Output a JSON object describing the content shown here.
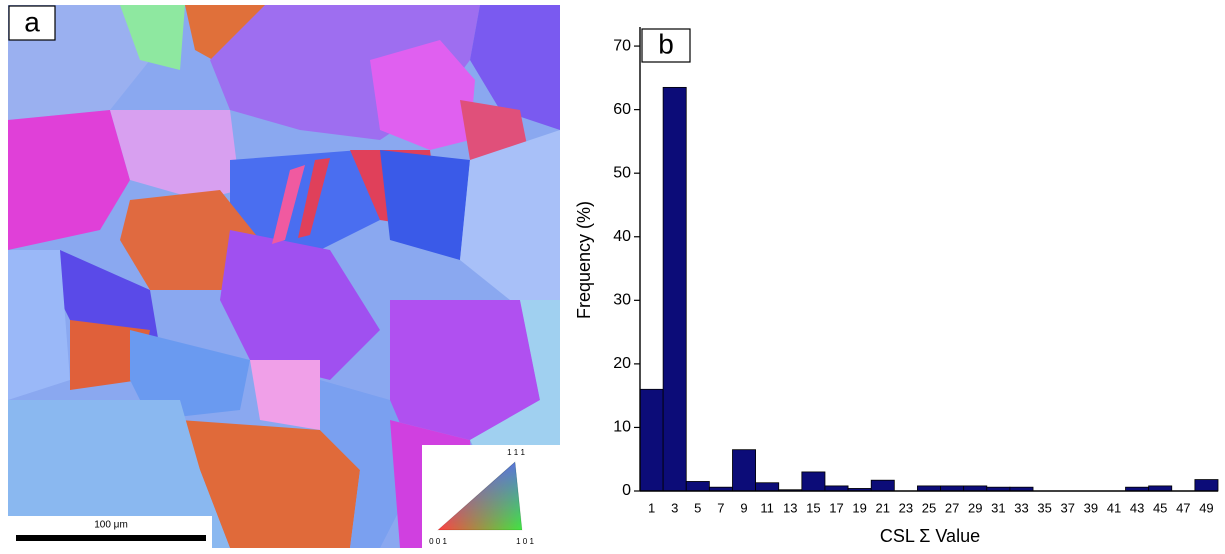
{
  "panel_a": {
    "label": "a",
    "scale_bar": "100 μm",
    "ipf_labels": {
      "top": "1 1 1",
      "left": "0 0 1",
      "right": "1 0 1"
    }
  },
  "chart_data": {
    "type": "bar",
    "panel_label": "b",
    "xlabel": "CSL Σ Value",
    "ylabel": "Frequency (%)",
    "categories": [
      "1",
      "3",
      "5",
      "7",
      "9",
      "11",
      "13",
      "15",
      "17",
      "19",
      "21",
      "23",
      "25",
      "27",
      "29",
      "31",
      "33",
      "35",
      "37",
      "39",
      "41",
      "43",
      "45",
      "47",
      "49"
    ],
    "values": [
      16,
      63.5,
      1.5,
      0.6,
      6.5,
      1.3,
      0.2,
      3,
      0.8,
      0.4,
      1.7,
      0,
      0.8,
      0.8,
      0.8,
      0.6,
      0.6,
      0,
      0,
      0,
      0,
      0.6,
      0.8,
      0,
      1.8
    ],
    "color": "#0c0c78",
    "ylim": [
      0,
      73
    ],
    "yticks": [
      0,
      10,
      20,
      30,
      40,
      50,
      60,
      70
    ]
  }
}
